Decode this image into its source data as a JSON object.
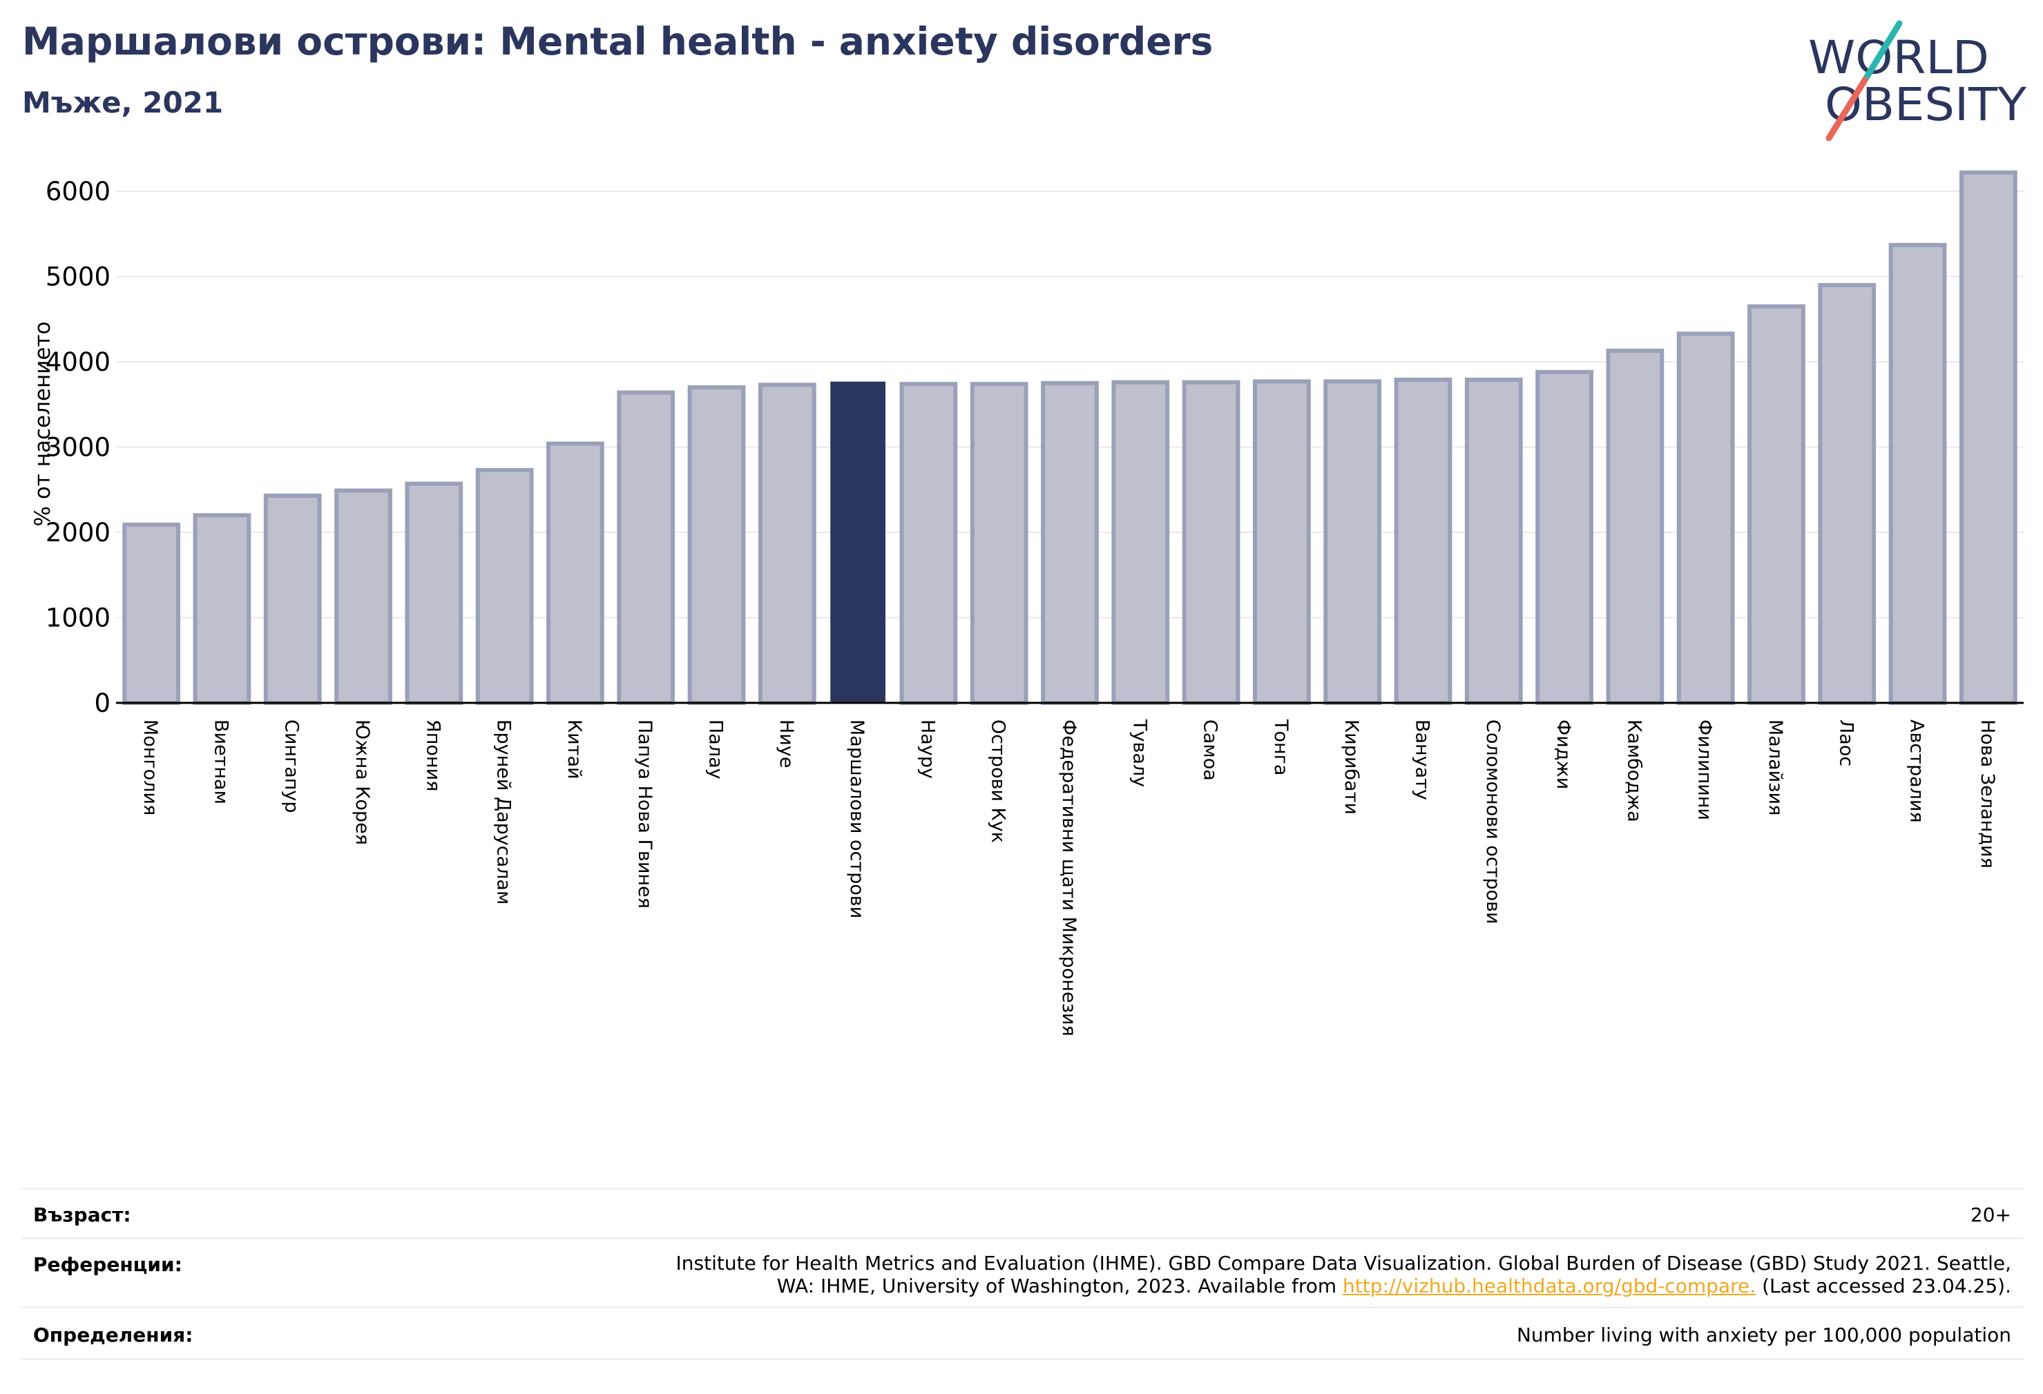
{
  "header": {
    "title": "Маршалови острови: Mental health - anxiety disorders",
    "subtitle": "Мъже, 2021"
  },
  "logo": {
    "line1": "WORLD",
    "line2": "OBESITY"
  },
  "chart_data": {
    "type": "bar",
    "ylabel": "% от населението",
    "ylim": [
      0,
      6300
    ],
    "yticks": [
      0,
      1000,
      2000,
      3000,
      4000,
      5000,
      6000
    ],
    "grid": true,
    "highlight": "Маршалови острови",
    "categories": [
      "Монголия",
      "Виетнам",
      "Сингапур",
      "Южна Корея",
      "Япония",
      "Бруней Дарусалам",
      "Китай",
      "Папуа Нова Гвинея",
      "Палау",
      "Ниуе",
      "Маршалови острови",
      "Науру",
      "Острови Кук",
      "Федеративни щати Микронезия",
      "Тувалу",
      "Самоа",
      "Тонга",
      "Кирибати",
      "Вануату",
      "Соломонови острови",
      "Фиджи",
      "Камбоджа",
      "Филипини",
      "Малайзия",
      "Лаос",
      "Австралия",
      "Нова Зеландия"
    ],
    "values": [
      2090,
      2200,
      2430,
      2490,
      2570,
      2730,
      3040,
      3640,
      3700,
      3730,
      3760,
      3740,
      3740,
      3750,
      3760,
      3760,
      3770,
      3770,
      3790,
      3790,
      3880,
      4130,
      4330,
      4650,
      4900,
      5370,
      6220
    ]
  },
  "colors": {
    "highlight": "#2b365e",
    "bar_fill": "#bec1cd",
    "bar_edge": "#9aa0b8",
    "title": "#2b365e",
    "grid": "#e6e8ee",
    "logo_teal": "#2bb5b0",
    "logo_red": "#e8675a"
  },
  "footer": {
    "age_label": "Възраст:",
    "age_value": "20+",
    "refs_label": "Референции:",
    "refs_line1": "Institute for Health Metrics and Evaluation (IHME). GBD Compare Data Visualization. Global Burden of Disease (GBD) Study 2021. Seattle,",
    "refs_line2_pre": "WA: IHME, University of Washington, 2023. Available from ",
    "refs_link": "http://vizhub.healthdata.org/gbd-compare.",
    "refs_line2_post": " (Last accessed 23.04.25).",
    "defs_label": "Определения:",
    "defs_value": "Number living with anxiety per 100,000 population"
  }
}
